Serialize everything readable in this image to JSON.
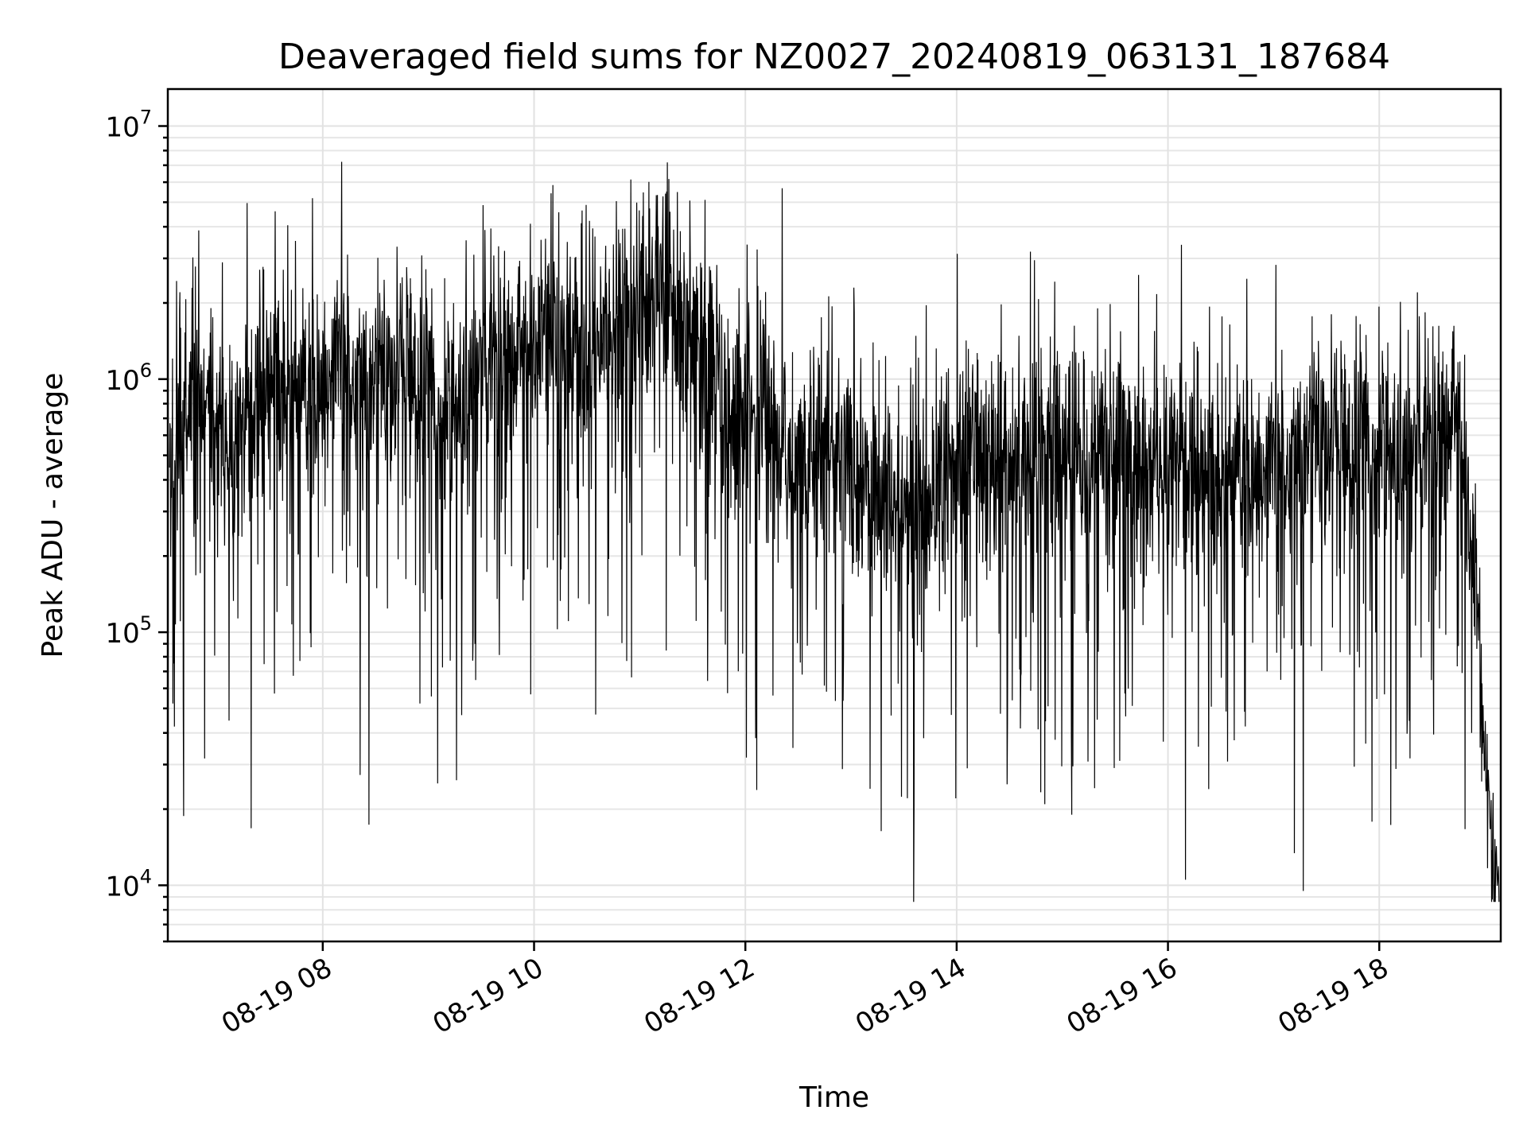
{
  "chart_data": {
    "type": "line",
    "title": "Deaveraged field sums for NZ0027_20240819_063131_187684",
    "xlabel": "Time",
    "ylabel": "Peak ADU - average",
    "yscale": "log",
    "ylim": [
      6000,
      14000000
    ],
    "xlim": [
      "2024-08-19 06:32",
      "2024-08-19 19:09"
    ],
    "grid": true,
    "x_ticks": [
      {
        "t": "2024-08-19 08:00",
        "label": "08-19 08"
      },
      {
        "t": "2024-08-19 10:00",
        "label": "08-19 10"
      },
      {
        "t": "2024-08-19 12:00",
        "label": "08-19 12"
      },
      {
        "t": "2024-08-19 14:00",
        "label": "08-19 14"
      },
      {
        "t": "2024-08-19 16:00",
        "label": "08-19 16"
      },
      {
        "t": "2024-08-19 18:00",
        "label": "08-19 18"
      }
    ],
    "y_ticks": [
      {
        "value": 10000,
        "base": "10",
        "exp": "4"
      },
      {
        "value": 100000,
        "base": "10",
        "exp": "5"
      },
      {
        "value": 1000000,
        "base": "10",
        "exp": "6"
      },
      {
        "value": 10000000,
        "base": "10",
        "exp": "7"
      }
    ],
    "series": [
      {
        "color": "#000000",
        "points": [
          [
            "2024-08-19 06:33",
            550000
          ],
          [
            "2024-08-19 06:50",
            900000
          ],
          [
            "2024-08-19 07:10",
            500000
          ],
          [
            "2024-08-19 07:30",
            1000000
          ],
          [
            "2024-08-19 07:50",
            850000
          ],
          [
            "2024-08-19 08:10",
            1300000
          ],
          [
            "2024-08-19 08:30",
            900000
          ],
          [
            "2024-08-19 08:50",
            1100000
          ],
          [
            "2024-08-19 09:10",
            700000
          ],
          [
            "2024-08-19 09:30",
            1300000
          ],
          [
            "2024-08-19 09:50",
            1200000
          ],
          [
            "2024-08-19 10:10",
            1600000
          ],
          [
            "2024-08-19 10:30",
            1300000
          ],
          [
            "2024-08-19 10:50",
            1700000
          ],
          [
            "2024-08-19 11:10",
            2000000
          ],
          [
            "2024-08-19 11:30",
            1500000
          ],
          [
            "2024-08-19 11:50",
            800000
          ],
          [
            "2024-08-19 12:10",
            700000
          ],
          [
            "2024-08-19 12:30",
            400000
          ],
          [
            "2024-08-19 12:50",
            550000
          ],
          [
            "2024-08-19 13:00",
            450000
          ],
          [
            "2024-08-19 13:30",
            300000
          ],
          [
            "2024-08-19 14:00",
            450000
          ],
          [
            "2024-08-19 14:30",
            500000
          ],
          [
            "2024-08-19 15:00",
            550000
          ],
          [
            "2024-08-19 15:30",
            500000
          ],
          [
            "2024-08-19 16:00",
            450000
          ],
          [
            "2024-08-19 16:30",
            400000
          ],
          [
            "2024-08-19 17:00",
            500000
          ],
          [
            "2024-08-19 17:30",
            550000
          ],
          [
            "2024-08-19 18:00",
            550000
          ],
          [
            "2024-08-19 18:30",
            600000
          ],
          [
            "2024-08-19 18:45",
            700000
          ],
          [
            "2024-08-19 18:55",
            150000
          ],
          [
            "2024-08-19 19:00",
            30000
          ],
          [
            "2024-08-19 19:08",
            10000
          ]
        ]
      }
    ]
  }
}
